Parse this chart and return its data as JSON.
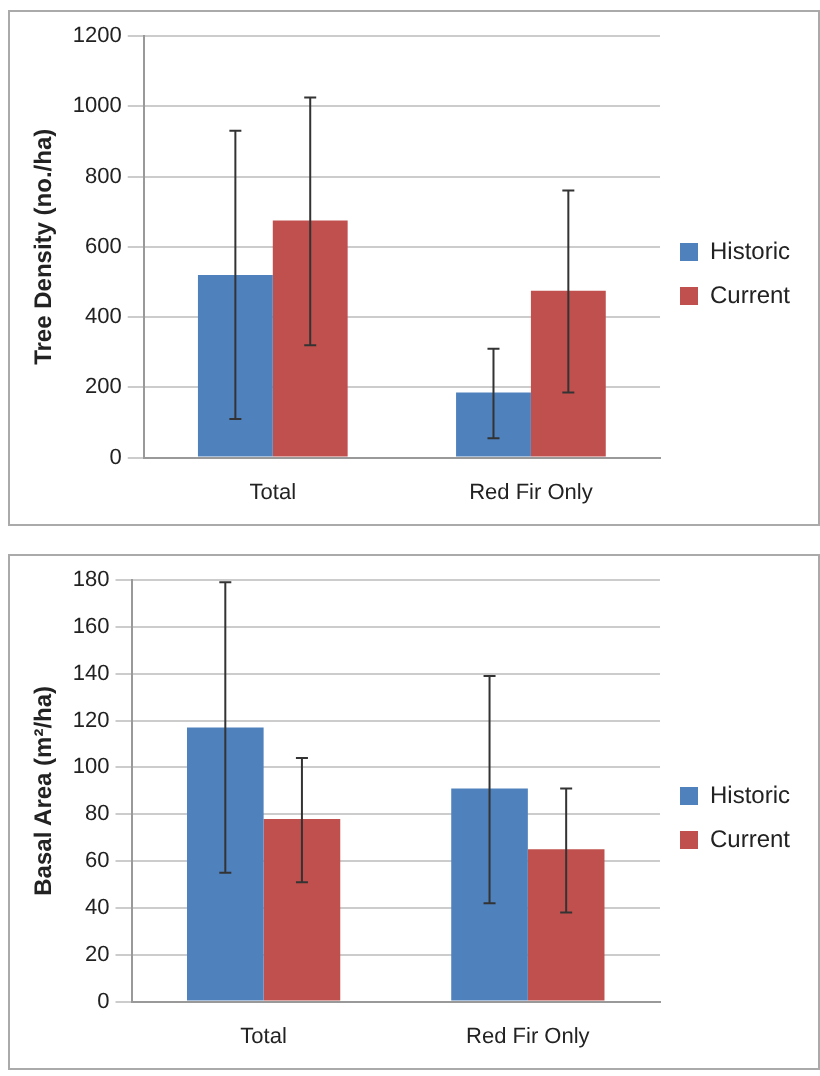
{
  "chart_data": [
    {
      "type": "bar",
      "ylabel": "Tree Density (no./ha)",
      "categories": [
        "Total",
        "Red Fir Only"
      ],
      "series": [
        {
          "name": "Historic",
          "color": "#4f81bd",
          "values": [
            520,
            185
          ],
          "errors": [
            [
              110,
              930
            ],
            [
              55,
              310
            ]
          ]
        },
        {
          "name": "Current",
          "color": "#c0504d",
          "values": [
            675,
            475
          ],
          "errors": [
            [
              320,
              1025
            ],
            [
              185,
              760
            ]
          ]
        }
      ],
      "ylim": [
        0,
        1200
      ],
      "yticks": [
        0,
        200,
        400,
        600,
        800,
        1000,
        1200
      ],
      "grid": "y",
      "legend": "right"
    },
    {
      "type": "bar",
      "ylabel": "Basal Area (m²/ha)",
      "categories": [
        "Total",
        "Red Fir Only"
      ],
      "series": [
        {
          "name": "Historic",
          "color": "#4f81bd",
          "values": [
            117,
            91
          ],
          "errors": [
            [
              55,
              179
            ],
            [
              42,
              139
            ]
          ]
        },
        {
          "name": "Current",
          "color": "#c0504d",
          "values": [
            78,
            65
          ],
          "errors": [
            [
              51,
              104
            ],
            [
              38,
              91
            ]
          ]
        }
      ],
      "ylim": [
        0,
        180
      ],
      "yticks": [
        0,
        20,
        40,
        60,
        80,
        100,
        120,
        140,
        160,
        180
      ],
      "grid": "y",
      "legend": "right"
    }
  ]
}
